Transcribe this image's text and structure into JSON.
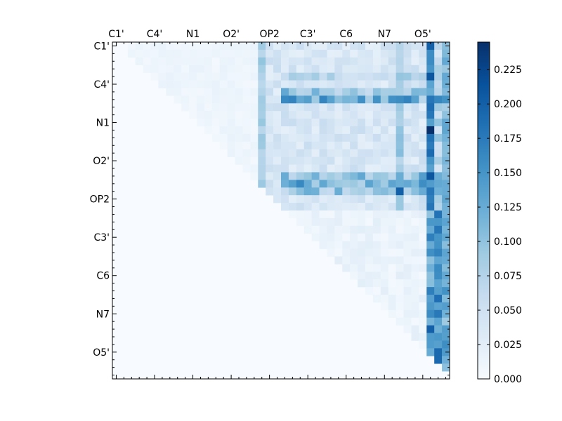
{
  "chart_data": {
    "type": "heatmap",
    "title": "",
    "xlabel": "",
    "ylabel": "",
    "colormap": "Blues",
    "value_range": [
      0.0,
      0.245
    ],
    "x_tick_labels": [
      "C1'",
      "C4'",
      "N1",
      "O2'",
      "OP2",
      "C3'",
      "C6",
      "N7",
      "O5'"
    ],
    "y_tick_labels": [
      "C1'",
      "C4'",
      "N1",
      "O2'",
      "OP2",
      "C3'",
      "C6",
      "N7",
      "O5'"
    ],
    "grid_size": 44,
    "label_every_n_cells": 5,
    "upper_triangular": true,
    "colorbar": {
      "ticks": [
        0.0,
        0.025,
        0.05,
        0.075,
        0.1,
        0.125,
        0.15,
        0.175,
        0.2,
        0.225
      ],
      "tick_labels": [
        "0.000",
        "0.025",
        "0.050",
        "0.075",
        "0.100",
        "0.125",
        "0.150",
        "0.175",
        "0.200",
        "0.225"
      ]
    },
    "column_groups": [
      {
        "from": 2,
        "to": 18,
        "value": 0.012
      },
      {
        "from": 19,
        "to": 23,
        "value": 0.04
      },
      {
        "from": 24,
        "to": 40,
        "value": 0.04
      },
      {
        "from": 41,
        "to": 43,
        "value": 0.07
      }
    ],
    "highlighted_columns": [
      {
        "col": 19,
        "value": 0.09
      },
      {
        "col": 37,
        "value": 0.1
      },
      {
        "col": 41,
        "value": 0.17
      },
      {
        "col": 43,
        "value": 0.12
      }
    ],
    "highlighted_rows": [
      {
        "row": 4,
        "value": 0.085
      },
      {
        "row": 6,
        "value": 0.11
      },
      {
        "row": 7,
        "value": 0.14
      },
      {
        "row": 17,
        "value": 0.12
      },
      {
        "row": 18,
        "value": 0.14
      },
      {
        "row": 19,
        "value": 0.11
      }
    ],
    "lower_rows_last_columns": [
      {
        "row_from": 22,
        "row_to": 43,
        "col": 41,
        "value": 0.15
      },
      {
        "row_from": 22,
        "row_to": 43,
        "col": 42,
        "value": 0.17
      },
      {
        "row_from": 22,
        "row_to": 43,
        "col": 43,
        "value": 0.14
      }
    ],
    "peak_cells": [
      {
        "row": 0,
        "col": 41,
        "value": 0.2
      },
      {
        "row": 4,
        "col": 41,
        "value": 0.21
      },
      {
        "row": 11,
        "col": 41,
        "value": 0.245
      },
      {
        "row": 14,
        "col": 41,
        "value": 0.19
      },
      {
        "row": 17,
        "col": 41,
        "value": 0.21
      },
      {
        "row": 19,
        "col": 37,
        "value": 0.2
      },
      {
        "row": 37,
        "col": 41,
        "value": 0.2
      }
    ]
  }
}
